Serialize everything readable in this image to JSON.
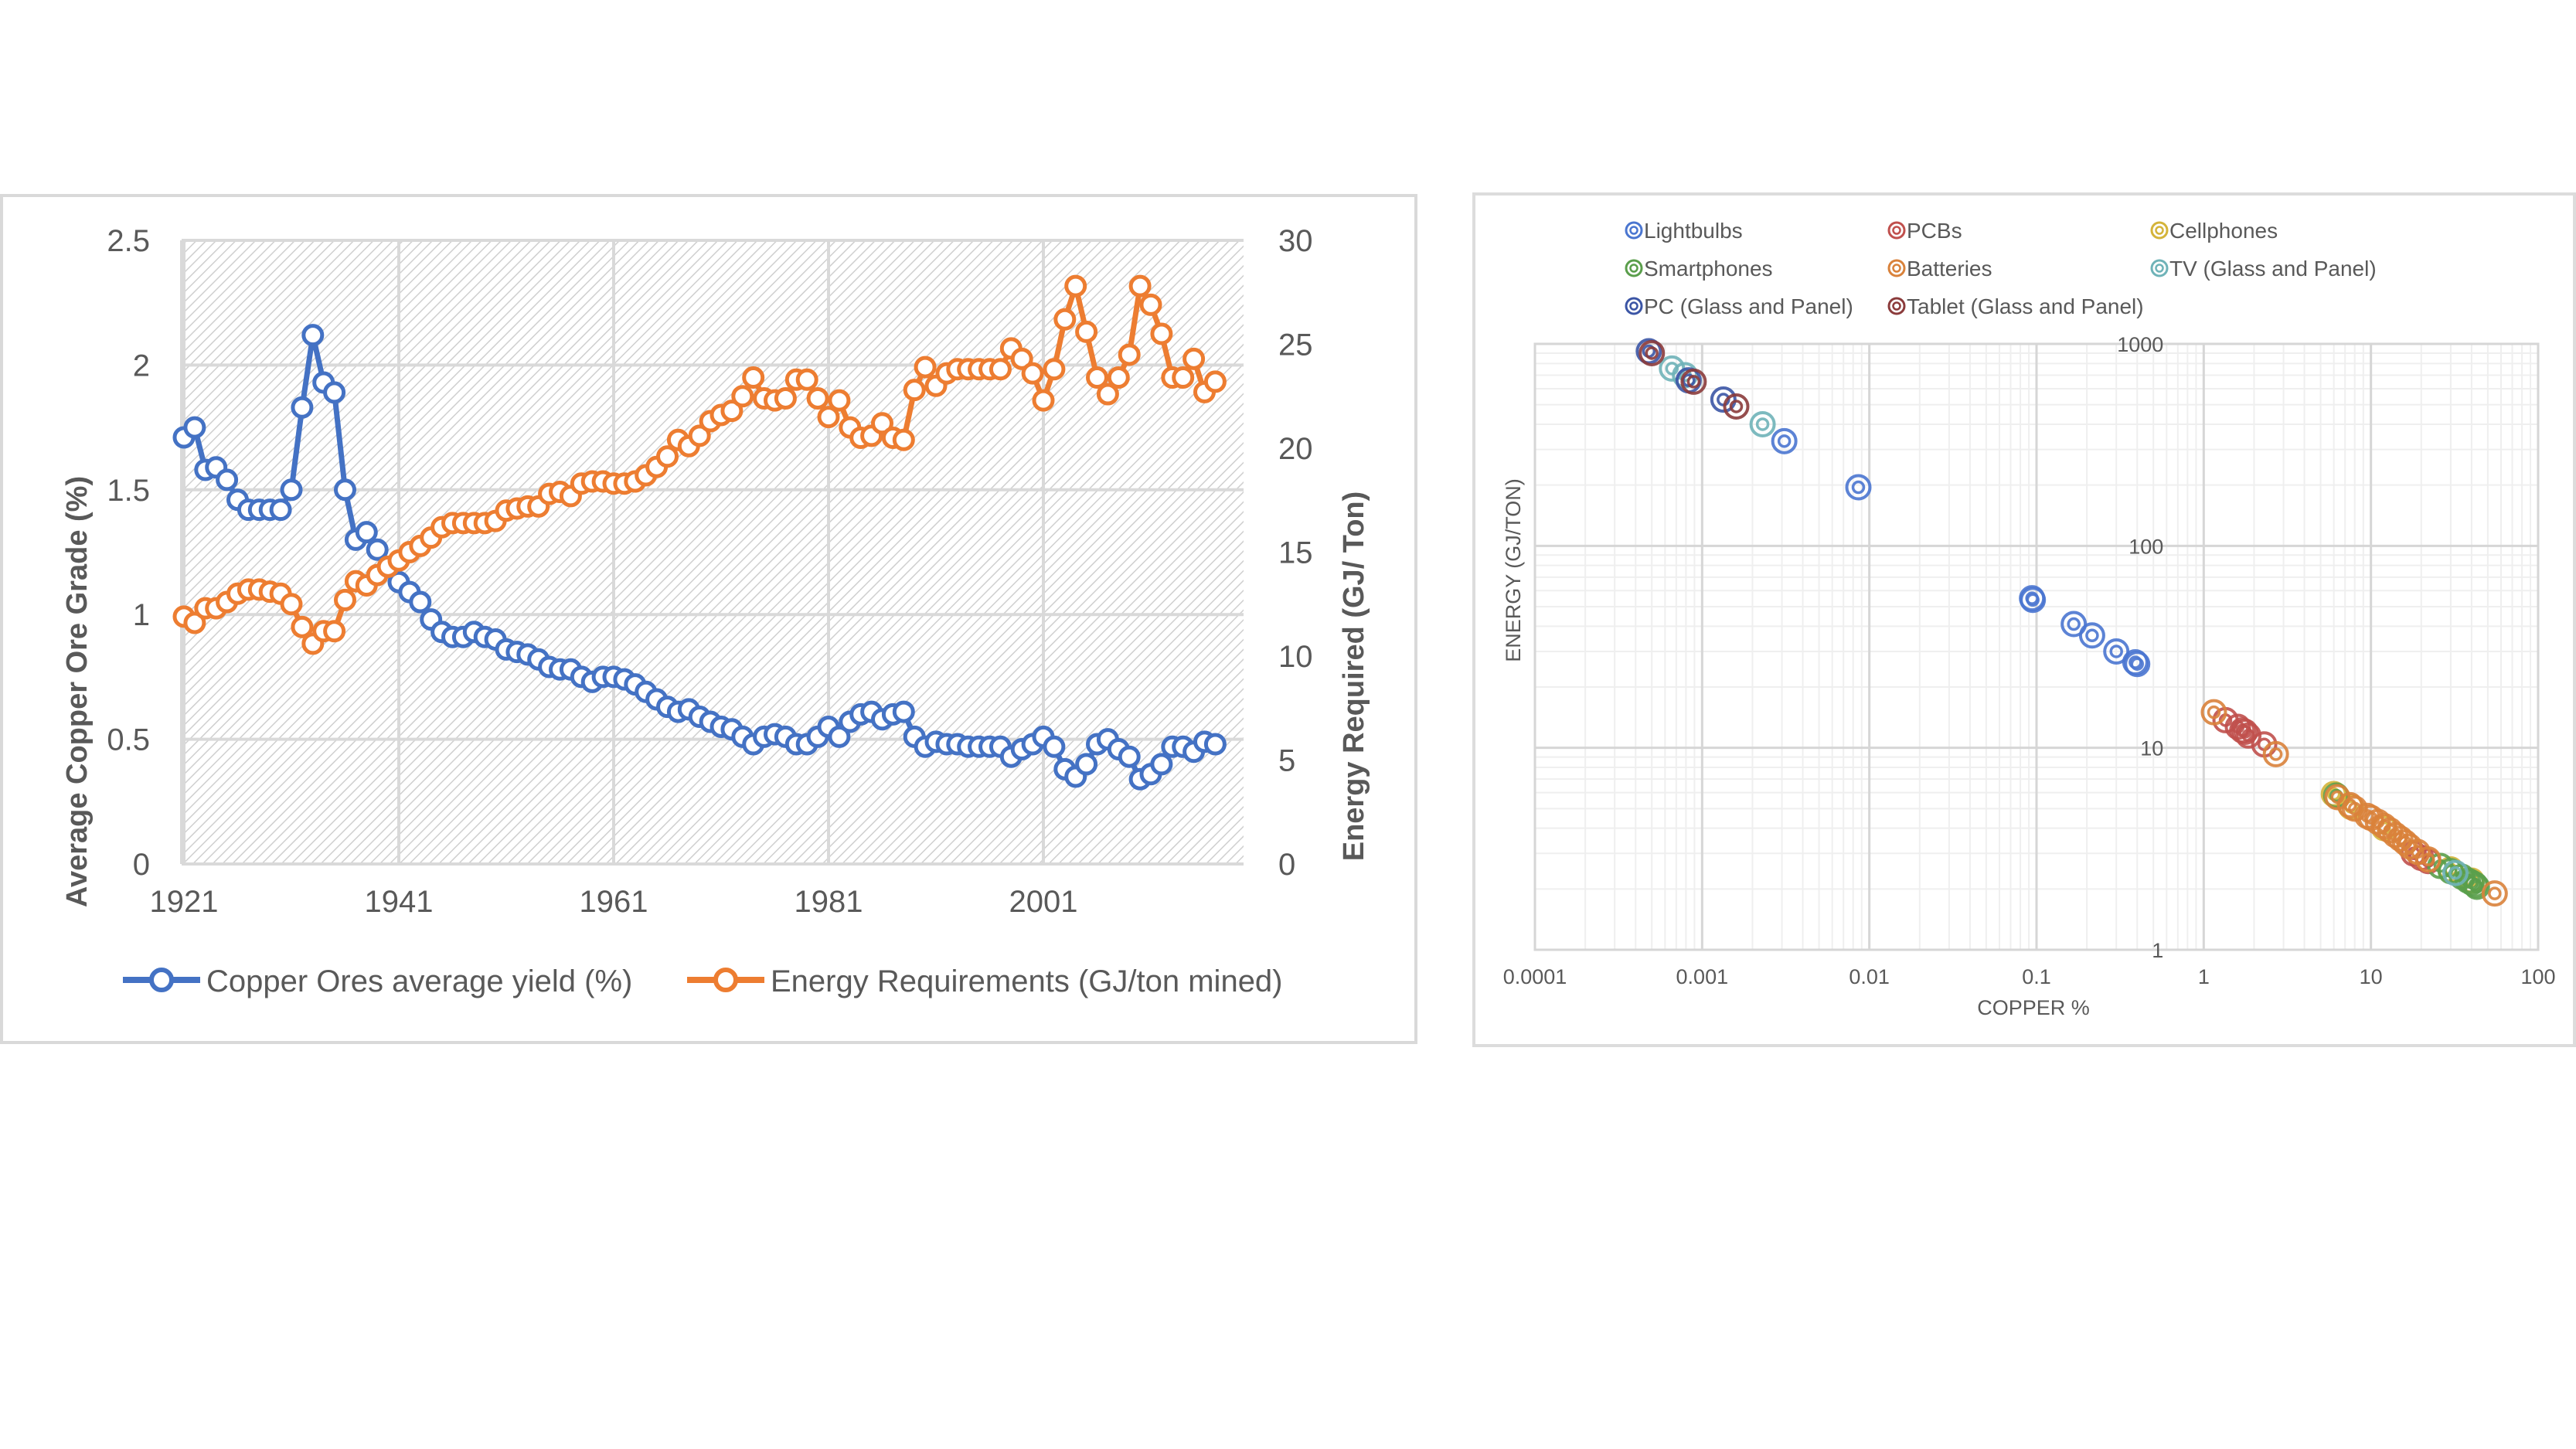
{
  "chart_data": [
    {
      "type": "line",
      "title": "",
      "xlabel": "",
      "ylabel": "Average Copper Ore Grade (%)",
      "y2label": "Energy Required (GJ/ Ton)",
      "x_ticks": [
        "1921",
        "1941",
        "1961",
        "1981",
        "2001"
      ],
      "xlim": [
        1921,
        2018
      ],
      "ylim": [
        0,
        2.5
      ],
      "y_ticks": [
        "0",
        "0.5",
        "1",
        "1.5",
        "2",
        "2.5"
      ],
      "y2lim": [
        0,
        30
      ],
      "y2_ticks": [
        "0",
        "5",
        "10",
        "15",
        "20",
        "25",
        "30"
      ],
      "grid": true,
      "legend_position": "bottom",
      "x": [
        1921,
        1922,
        1923,
        1924,
        1925,
        1926,
        1927,
        1928,
        1929,
        1930,
        1931,
        1932,
        1933,
        1934,
        1935,
        1936,
        1937,
        1938,
        1939,
        1940,
        1941,
        1942,
        1943,
        1944,
        1945,
        1946,
        1947,
        1948,
        1949,
        1950,
        1951,
        1952,
        1953,
        1954,
        1955,
        1956,
        1957,
        1958,
        1959,
        1960,
        1961,
        1962,
        1963,
        1964,
        1965,
        1966,
        1967,
        1968,
        1969,
        1970,
        1971,
        1972,
        1973,
        1974,
        1975,
        1976,
        1977,
        1978,
        1979,
        1980,
        1981,
        1982,
        1983,
        1984,
        1985,
        1986,
        1987,
        1988,
        1989,
        1990,
        1991,
        1992,
        1993,
        1994,
        1995,
        1996,
        1997,
        1998,
        1999,
        2000,
        2001,
        2002,
        2003,
        2004,
        2005,
        2006,
        2007,
        2008,
        2009,
        2010,
        2011,
        2012,
        2013,
        2014,
        2015,
        2016,
        2017
      ],
      "series": [
        {
          "name": "Copper Ores average yield (%)",
          "axis": "left",
          "color": "#4472c4",
          "values": [
            1.71,
            1.75,
            1.58,
            1.59,
            1.54,
            1.46,
            1.42,
            1.42,
            1.42,
            1.42,
            1.5,
            1.83,
            2.12,
            1.93,
            1.89,
            1.5,
            1.3,
            1.33,
            1.26,
            1.19,
            1.13,
            1.09,
            1.05,
            0.98,
            0.93,
            0.91,
            0.91,
            0.93,
            0.91,
            0.9,
            0.86,
            0.85,
            0.84,
            0.82,
            0.79,
            0.78,
            0.78,
            0.75,
            0.73,
            0.75,
            0.75,
            0.74,
            0.72,
            0.69,
            0.66,
            0.63,
            0.61,
            0.62,
            0.59,
            0.57,
            0.55,
            0.54,
            0.51,
            0.48,
            0.51,
            0.52,
            0.51,
            0.48,
            0.48,
            0.51,
            0.55,
            0.51,
            0.57,
            0.6,
            0.61,
            0.58,
            0.6,
            0.61,
            0.51,
            0.47,
            0.49,
            0.48,
            0.48,
            0.47,
            0.47,
            0.47,
            0.47,
            0.43,
            0.46,
            0.48,
            0.51,
            0.47,
            0.38,
            0.35,
            0.4,
            0.48,
            0.5,
            0.46,
            0.43,
            0.34,
            0.36,
            0.4,
            0.47,
            0.47,
            0.45,
            0.49,
            0.48
          ]
        },
        {
          "name": "Energy Requirements (GJ/ton mined)",
          "axis": "right",
          "color": "#ed7d31",
          "values": [
            11.9,
            11.6,
            12.3,
            12.3,
            12.6,
            13.0,
            13.2,
            13.2,
            13.1,
            13.0,
            12.5,
            11.4,
            10.6,
            11.2,
            11.2,
            12.7,
            13.6,
            13.4,
            13.9,
            14.3,
            14.6,
            15.0,
            15.3,
            15.7,
            16.2,
            16.4,
            16.4,
            16.4,
            16.4,
            16.5,
            17.0,
            17.1,
            17.2,
            17.2,
            17.8,
            17.9,
            17.7,
            18.3,
            18.4,
            18.4,
            18.3,
            18.3,
            18.4,
            18.7,
            19.1,
            19.6,
            20.4,
            20.1,
            20.6,
            21.3,
            21.6,
            21.8,
            22.5,
            23.4,
            22.4,
            22.3,
            22.4,
            23.3,
            23.3,
            22.4,
            21.5,
            22.3,
            21.0,
            20.5,
            20.6,
            21.2,
            20.5,
            20.4,
            22.8,
            23.9,
            23.0,
            23.6,
            23.8,
            23.8,
            23.8,
            23.8,
            23.8,
            24.8,
            24.3,
            23.6,
            22.3,
            23.8,
            26.2,
            27.8,
            25.6,
            23.4,
            22.6,
            23.4,
            24.5,
            27.8,
            26.9,
            25.5,
            23.4,
            23.4,
            24.3,
            22.7,
            23.2
          ]
        }
      ]
    },
    {
      "type": "scatter",
      "title": "",
      "xlabel": "COPPER %",
      "ylabel": "ENERGY (GJ/TON)",
      "x_scale": "log",
      "y_scale": "log",
      "xlim": [
        0.0001,
        100
      ],
      "ylim": [
        1,
        1000
      ],
      "x_ticks": [
        "0.0001",
        "0.001",
        "0.01",
        "0.1",
        "1",
        "10",
        "100"
      ],
      "y_ticks": [
        "1",
        "10",
        "100",
        "1000"
      ],
      "grid": true,
      "legend_position": "top",
      "series": [
        {
          "name": "Lightbulbs",
          "color": "#4a76d0",
          "points": [
            [
              0.0031,
              330
            ],
            [
              0.0086,
              195
            ],
            [
              0.094,
              55
            ],
            [
              0.095,
              54
            ],
            [
              0.167,
              41
            ],
            [
              0.215,
              36
            ],
            [
              0.3,
              30
            ],
            [
              0.39,
              26.5
            ],
            [
              0.4,
              26
            ]
          ]
        },
        {
          "name": "PCBs",
          "color": "#c0504d",
          "points": [
            [
              1.35,
              13.7
            ],
            [
              1.6,
              12.7
            ],
            [
              1.7,
              12.2
            ],
            [
              1.77,
              12
            ],
            [
              1.85,
              11.5
            ],
            [
              2.3,
              10.4
            ],
            [
              18,
              3.0
            ],
            [
              20,
              2.85
            ],
            [
              22,
              2.75
            ]
          ]
        },
        {
          "name": "Cellphones",
          "color": "#d4b43a",
          "points": [
            [
              6.0,
              5.9
            ],
            [
              7.6,
              5.1
            ],
            [
              12,
              4.0
            ],
            [
              30,
              2.5
            ],
            [
              40,
              2.2
            ]
          ]
        },
        {
          "name": "Smartphones",
          "color": "#5a9e4b",
          "points": [
            [
              6.2,
              5.8
            ],
            [
              26,
              2.6
            ],
            [
              30,
              2.45
            ],
            [
              35,
              2.3
            ],
            [
              38,
              2.2
            ],
            [
              40,
              2.15
            ],
            [
              42,
              2.1
            ],
            [
              43,
              2.05
            ]
          ]
        },
        {
          "name": "Batteries",
          "color": "#d9823b",
          "points": [
            [
              1.15,
              15
            ],
            [
              2.7,
              9.3
            ],
            [
              6.3,
              5.7
            ],
            [
              7.5,
              5.2
            ],
            [
              8,
              5.0
            ],
            [
              9.5,
              4.6
            ],
            [
              10,
              4.5
            ],
            [
              11,
              4.3
            ],
            [
              12,
              4.1
            ],
            [
              13,
              3.9
            ],
            [
              14,
              3.7
            ],
            [
              15,
              3.55
            ],
            [
              16,
              3.4
            ],
            [
              17,
              3.25
            ],
            [
              19,
              3.05
            ],
            [
              22,
              2.8
            ],
            [
              55,
              1.9
            ]
          ]
        },
        {
          "name": "TV (Glass and Panel)",
          "color": "#6fb3b8",
          "points": [
            [
              0.00066,
              755
            ],
            [
              0.00079,
              700
            ],
            [
              0.0023,
              400
            ],
            [
              32,
              2.4
            ]
          ]
        },
        {
          "name": "PC (Glass and Panel)",
          "color": "#3b55a5",
          "points": [
            [
              0.00048,
              920
            ],
            [
              0.00083,
              660
            ],
            [
              0.00134,
              530
            ]
          ]
        },
        {
          "name": "Tablet (Glass and Panel)",
          "color": "#8b3b3b",
          "points": [
            [
              0.0005,
              900
            ],
            [
              0.00089,
              650
            ],
            [
              0.0016,
              490
            ]
          ]
        }
      ]
    }
  ]
}
